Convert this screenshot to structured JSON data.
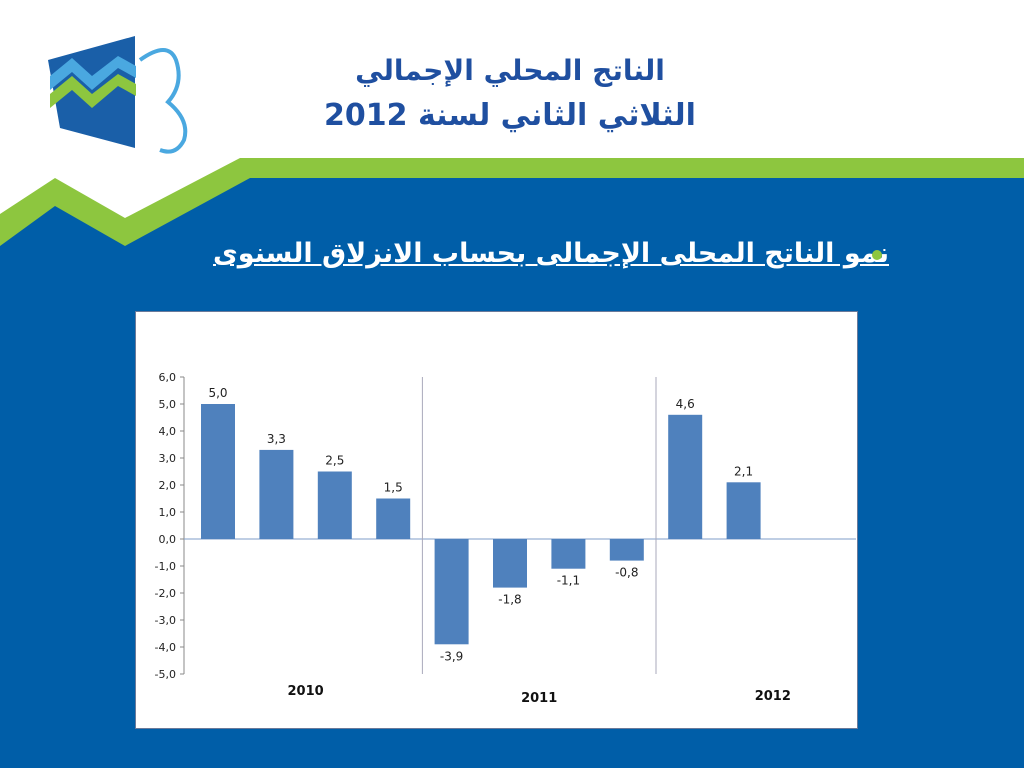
{
  "slide": {
    "title_line1": "الناتج المحلي الإجمالي",
    "title_line2": "الثلاثي الثاني لسنة 2012",
    "bullet": "نمو الناتج المحلى الإجمالى بحساب الانزلاق السنوى"
  },
  "colors": {
    "slide_blue": "#005ea8",
    "accent_green": "#8dc63f",
    "bar": "#4f81bd",
    "title": "#1f4fa0"
  },
  "chart_data": {
    "type": "bar",
    "categories": [
      "2010",
      "2010",
      "2010",
      "2010",
      "2011",
      "2011",
      "2011",
      "2011",
      "2012",
      "2012",
      "2012",
      "2012"
    ],
    "values": [
      5.0,
      3.3,
      2.5,
      1.5,
      -3.9,
      -1.8,
      -1.1,
      -0.8,
      4.6,
      2.1,
      null,
      null
    ],
    "data_labels": [
      "5,0",
      "3,3",
      "2,5",
      "1,5",
      "-3,9",
      "-1,8",
      "-1,1",
      "-0,8",
      "4,6",
      "2,1",
      "",
      ""
    ],
    "groups": [
      "2010",
      "2011",
      "2012"
    ],
    "ylim": [
      -5.0,
      6.0
    ],
    "yticks": [
      "6,0",
      "5,0",
      "4,0",
      "3,0",
      "2,0",
      "1,0",
      "0,0",
      "-1,0",
      "-2,0",
      "-3,0",
      "-4,0",
      "-5,0"
    ],
    "grid": false,
    "legend": "none"
  }
}
